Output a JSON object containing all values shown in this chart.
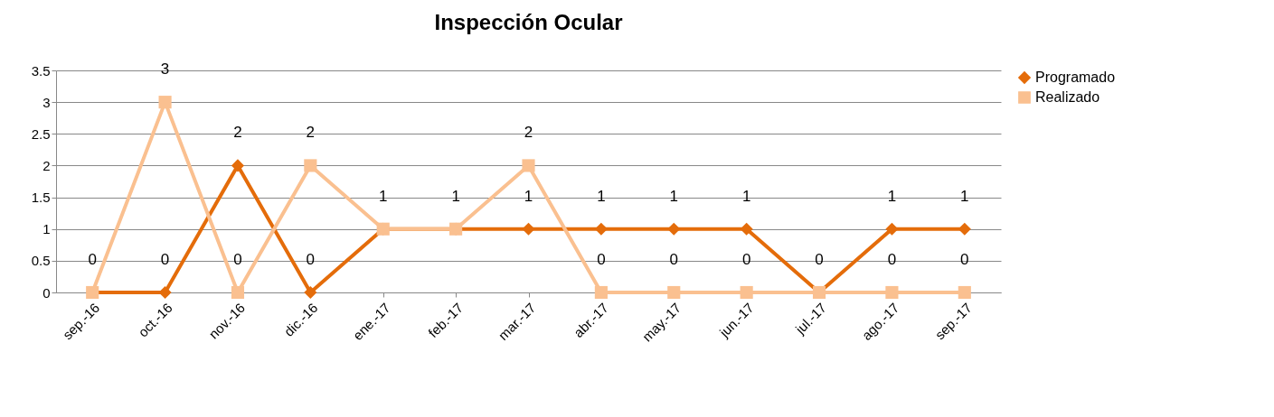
{
  "chart_data": {
    "type": "line",
    "title": "Inspección Ocular",
    "categories": [
      "sep.-16",
      "oct.-16",
      "nov.-16",
      "dic.-16",
      "ene.-17",
      "feb.-17",
      "mar.-17",
      "abr.-17",
      "may.-17",
      "jun.-17",
      "jul.-17",
      "ago.-17",
      "sep.-17"
    ],
    "series": [
      {
        "name": "Programado",
        "color": "#e46c0a",
        "marker": "diamond",
        "values": [
          0,
          0,
          2,
          0,
          1,
          1,
          1,
          1,
          1,
          1,
          0,
          1,
          1
        ],
        "value_labels": [
          "0",
          "0",
          "2",
          "0",
          "1",
          "1",
          "1",
          "1",
          "1",
          "1",
          "0",
          "1",
          "1"
        ]
      },
      {
        "name": "Realizado",
        "color": "#fac090",
        "marker": "square",
        "values": [
          0,
          3,
          0,
          2,
          1,
          1,
          2,
          0,
          0,
          0,
          0,
          0,
          0
        ],
        "value_labels": [
          null,
          "3",
          "0",
          "2",
          null,
          null,
          "2",
          "0",
          "0",
          "0",
          null,
          "0",
          "0"
        ]
      }
    ],
    "ylim": [
      0,
      3.5
    ],
    "yticks": [
      0,
      0.5,
      1,
      1.5,
      2,
      2.5,
      3,
      3.5
    ],
    "grid": "y",
    "legend": "right",
    "line_style": "solid"
  }
}
